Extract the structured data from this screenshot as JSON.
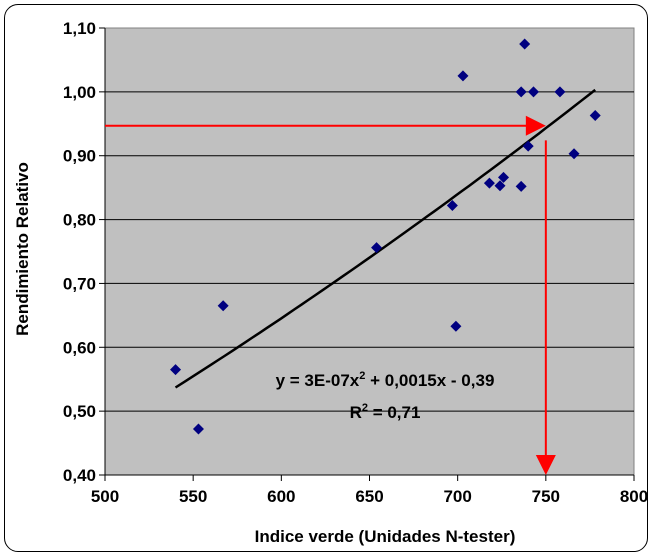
{
  "chart_data": {
    "type": "scatter",
    "title": "",
    "xlabel": "Indice verde (Unidades N-tester)",
    "ylabel": "Rendimiento Relativo",
    "xlim": [
      500,
      800
    ],
    "ylim": [
      0.4,
      1.1
    ],
    "xticks": [
      500,
      550,
      600,
      650,
      700,
      750,
      800
    ],
    "yticks": [
      0.4,
      0.5,
      0.6,
      0.7,
      0.8,
      0.9,
      1.0,
      1.1
    ],
    "xtick_labels": [
      "500",
      "550",
      "600",
      "650",
      "700",
      "750",
      "800"
    ],
    "ytick_labels": [
      "0,40",
      "0,50",
      "0,60",
      "0,70",
      "0,80",
      "0,90",
      "1,00",
      "1,10"
    ],
    "grid": "horizontal",
    "plot_background": "#C0C0C0",
    "marker_color": "#000080",
    "trend_color": "#000000",
    "arrow_color": "#FF0000",
    "points": [
      {
        "x": 540,
        "y": 0.565
      },
      {
        "x": 553,
        "y": 0.472
      },
      {
        "x": 567,
        "y": 0.665
      },
      {
        "x": 654,
        "y": 0.756
      },
      {
        "x": 697,
        "y": 0.822
      },
      {
        "x": 699,
        "y": 0.633
      },
      {
        "x": 703,
        "y": 1.025
      },
      {
        "x": 718,
        "y": 0.857
      },
      {
        "x": 724,
        "y": 0.853
      },
      {
        "x": 726,
        "y": 0.866
      },
      {
        "x": 736,
        "y": 1.0
      },
      {
        "x": 736,
        "y": 0.852
      },
      {
        "x": 738,
        "y": 1.075
      },
      {
        "x": 740,
        "y": 0.915
      },
      {
        "x": 743,
        "y": 1.0
      },
      {
        "x": 758,
        "y": 1.0
      },
      {
        "x": 766,
        "y": 0.903
      },
      {
        "x": 778,
        "y": 0.963
      }
    ],
    "trendline": {
      "type": "polynomial",
      "x_range": [
        540,
        778
      ],
      "y_start": 0.537,
      "y_end": 1.003
    },
    "equation": {
      "prefix": "y = 3E-07x",
      "exp": "2",
      "suffix": " + 0,0015x - 0,39"
    },
    "r2": {
      "prefix": "R",
      "exp": "2",
      "suffix": " = 0,71"
    },
    "annotation_arrows": {
      "horizontal": {
        "from_x": 500,
        "to_x": 750,
        "y": 0.947
      },
      "vertical": {
        "x": 750,
        "from_y": 0.924,
        "to_y": 0.4
      }
    }
  }
}
